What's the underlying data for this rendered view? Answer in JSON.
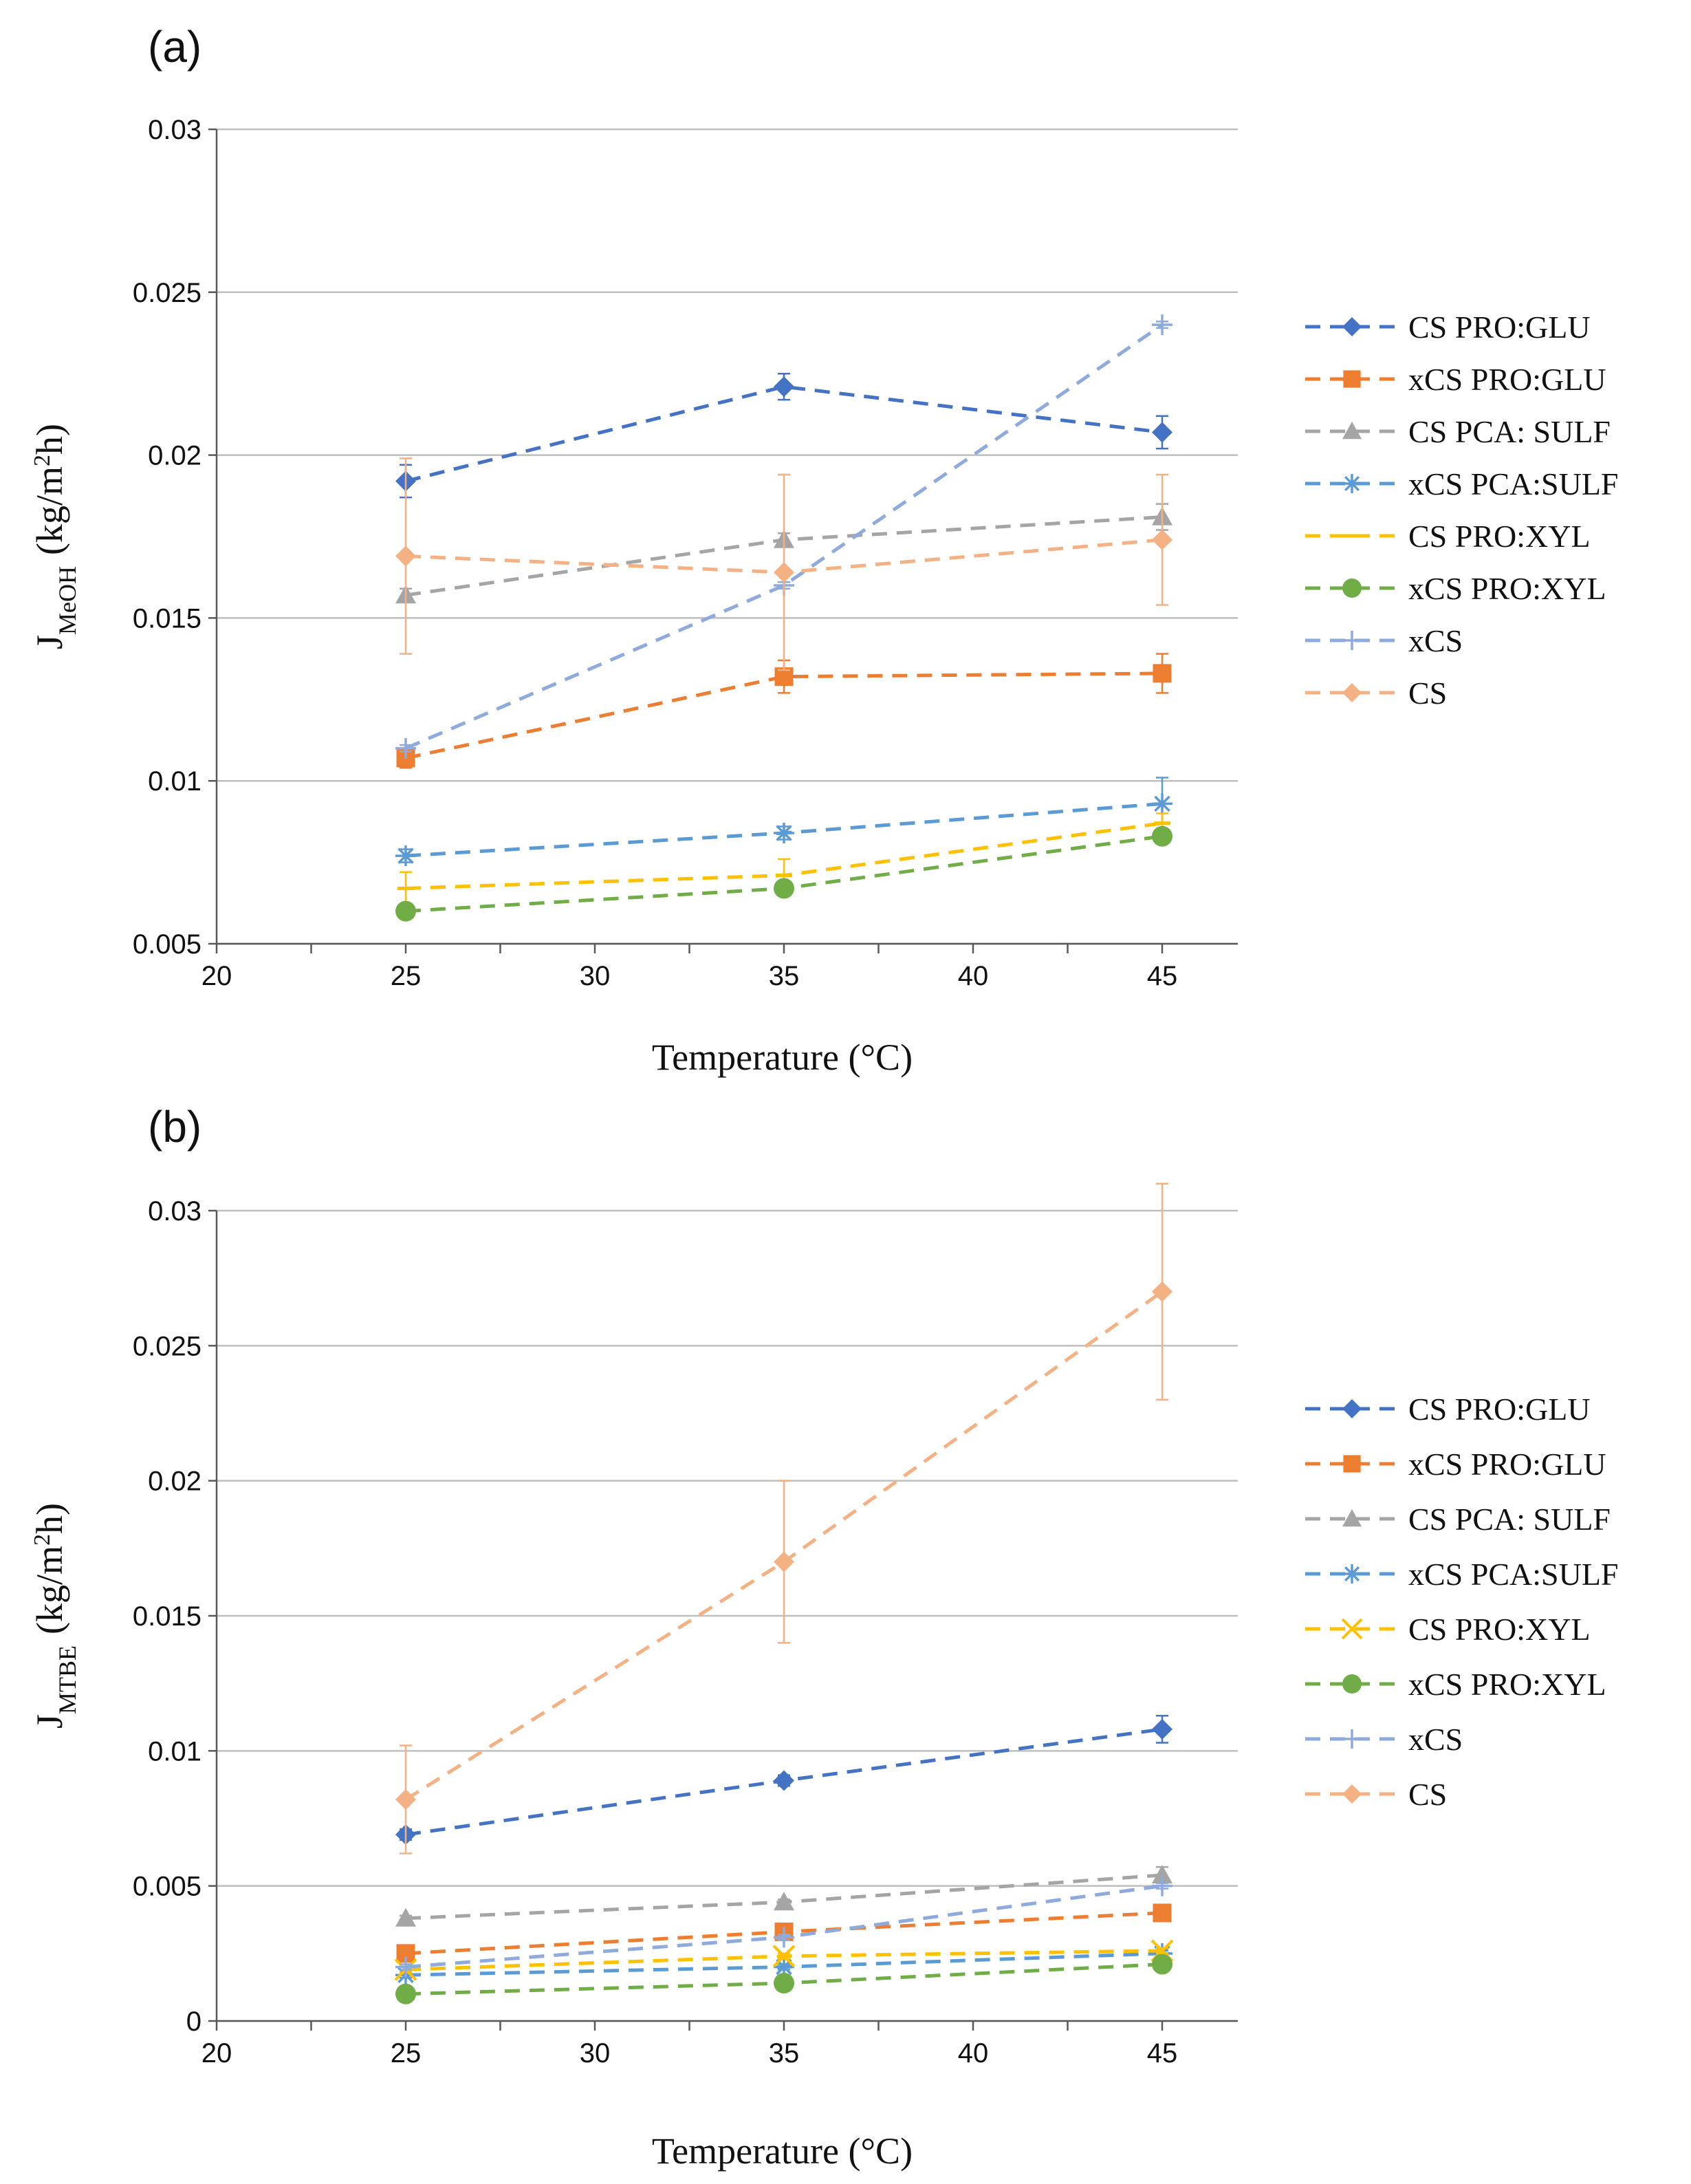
{
  "chart_data": [
    {
      "type": "line",
      "panel_label": "(a)",
      "xlabel": "Temperature (°C)",
      "ylabel_main": "J",
      "ylabel_sub": "MeOH",
      "ylabel_unit_pre": "(kg/m",
      "ylabel_unit_sup": "2",
      "ylabel_unit_post": "h)",
      "xlim": [
        20,
        47
      ],
      "ylim": [
        0.005,
        0.03
      ],
      "x_ticks": [
        "20",
        "25",
        "30",
        "35",
        "40",
        "45"
      ],
      "y_ticks": [
        "0.005",
        "0.01",
        "0.015",
        "0.02",
        "0.025",
        "0.03"
      ],
      "x": [
        25,
        35,
        45
      ],
      "grid": true,
      "legend_position": "right",
      "series": [
        {
          "name": "CS PRO:GLU",
          "color": "#4472C4",
          "marker": "diamond",
          "values": [
            0.0192,
            0.0221,
            0.0207
          ],
          "errors": [
            0.0005,
            0.0004,
            0.0005
          ]
        },
        {
          "name": "xCS PRO:GLU",
          "color": "#ED7D31",
          "marker": "square",
          "values": [
            0.0107,
            0.0132,
            0.0133
          ],
          "errors": [
            0.0003,
            0.0005,
            0.0006
          ]
        },
        {
          "name": "CS PCA: SULF",
          "color": "#A5A5A5",
          "marker": "triangle",
          "values": [
            0.0157,
            0.0174,
            0.0181
          ],
          "errors": [
            0.0002,
            0.0002,
            0.0004
          ]
        },
        {
          "name": "xCS PCA:SULF",
          "color": "#5B9BD5",
          "marker": "asterisk",
          "values": [
            0.0077,
            0.0084,
            0.0093
          ],
          "errors": [
            0.0002,
            0.0002,
            0.0008
          ]
        },
        {
          "name": "CS PRO:XYL",
          "color": "#FFC000",
          "marker": "dash",
          "values": [
            0.0067,
            0.0071,
            0.0087
          ],
          "errors": [
            0.0005,
            0.0005,
            0.0003
          ]
        },
        {
          "name": "xCS PRO:XYL",
          "color": "#70AD47",
          "marker": "circle",
          "values": [
            0.006,
            0.0067,
            0.0083
          ],
          "errors": [
            0.0001,
            0.0001,
            0.0001
          ]
        },
        {
          "name": "xCS",
          "color": "#8FAADC",
          "marker": "plus",
          "values": [
            0.011,
            0.016,
            0.024
          ],
          "errors": [
            0.0001,
            0.0001,
            0.0001
          ]
        },
        {
          "name": "CS",
          "color": "#F4B183",
          "marker": "diamond",
          "values": [
            0.0169,
            0.0164,
            0.0174
          ],
          "errors": [
            0.003,
            0.003,
            0.002
          ]
        }
      ]
    },
    {
      "type": "line",
      "panel_label": "(b)",
      "xlabel": "Temperature (°C)",
      "ylabel_main": "J",
      "ylabel_sub": "MTBE",
      "ylabel_unit_pre": "(kg/m",
      "ylabel_unit_sup": "2",
      "ylabel_unit_post": "h)",
      "xlim": [
        20,
        47
      ],
      "ylim": [
        0,
        0.03
      ],
      "x_ticks": [
        "20",
        "25",
        "30",
        "35",
        "40",
        "45"
      ],
      "y_ticks": [
        "0",
        "0.005",
        "0.01",
        "0.015",
        "0.02",
        "0.025",
        "0.03"
      ],
      "x": [
        25,
        35,
        45
      ],
      "grid": true,
      "legend_position": "right",
      "series": [
        {
          "name": "CS PRO:GLU",
          "color": "#4472C4",
          "marker": "diamond",
          "values": [
            0.0069,
            0.0089,
            0.0108
          ],
          "errors": [
            0.0002,
            0.0002,
            0.0005
          ]
        },
        {
          "name": "xCS PRO:GLU",
          "color": "#ED7D31",
          "marker": "square",
          "values": [
            0.0025,
            0.0033,
            0.004
          ],
          "errors": [
            0.0001,
            0.0001,
            0.0001
          ]
        },
        {
          "name": "CS PCA: SULF",
          "color": "#A5A5A5",
          "marker": "triangle",
          "values": [
            0.0038,
            0.0044,
            0.0054
          ],
          "errors": [
            0.0001,
            0.0001,
            0.0003
          ]
        },
        {
          "name": "xCS PCA:SULF",
          "color": "#5B9BD5",
          "marker": "asterisk",
          "values": [
            0.0017,
            0.002,
            0.0025
          ],
          "errors": [
            0.0001,
            0.0001,
            0.0001
          ]
        },
        {
          "name": "CS PRO:XYL",
          "color": "#FFC000",
          "marker": "cross",
          "values": [
            0.0019,
            0.0024,
            0.0026
          ],
          "errors": [
            0.0001,
            0.0001,
            0.0001
          ]
        },
        {
          "name": "xCS PRO:XYL",
          "color": "#70AD47",
          "marker": "circle",
          "values": [
            0.001,
            0.0014,
            0.0021
          ],
          "errors": [
            0.0001,
            0.0001,
            0.0001
          ]
        },
        {
          "name": "xCS",
          "color": "#8FAADC",
          "marker": "plus",
          "values": [
            0.002,
            0.0031,
            0.005
          ],
          "errors": [
            0.0001,
            0.0001,
            0.0001
          ]
        },
        {
          "name": "CS",
          "color": "#F4B183",
          "marker": "diamond",
          "values": [
            0.0082,
            0.017,
            0.027
          ],
          "errors": [
            0.002,
            0.003,
            0.004
          ]
        }
      ]
    }
  ]
}
